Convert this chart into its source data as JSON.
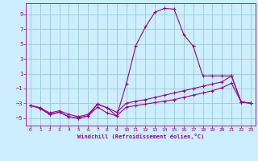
{
  "x": [
    0,
    1,
    2,
    3,
    4,
    5,
    6,
    7,
    8,
    9,
    10,
    11,
    12,
    13,
    14,
    15,
    16,
    17,
    18,
    19,
    20,
    21,
    22,
    23
  ],
  "y_main": [
    -3.3,
    -3.7,
    -4.5,
    -4.2,
    -4.8,
    -5.0,
    -4.7,
    -3.1,
    -3.6,
    -4.7,
    -0.4,
    4.8,
    7.3,
    9.3,
    9.8,
    9.7,
    6.3,
    4.7,
    0.7,
    0.7,
    0.7,
    0.7,
    -2.8,
    -3.0
  ],
  "y_upper_flat": [
    -3.3,
    -3.6,
    -4.3,
    -4.0,
    -4.5,
    -4.8,
    -4.5,
    -3.1,
    -3.6,
    -4.2,
    -3.0,
    -2.7,
    -2.5,
    -2.2,
    -1.9,
    -1.6,
    -1.3,
    -1.0,
    -0.7,
    -0.4,
    -0.1,
    0.7,
    -2.8,
    -3.0
  ],
  "y_lower_flat": [
    -3.3,
    -3.6,
    -4.5,
    -4.2,
    -4.8,
    -5.0,
    -4.7,
    -3.5,
    -4.3,
    -4.7,
    -3.5,
    -3.3,
    -3.1,
    -2.9,
    -2.7,
    -2.5,
    -2.2,
    -1.9,
    -1.6,
    -1.3,
    -0.9,
    -0.3,
    -2.8,
    -3.0
  ],
  "bg_color": "#cceeff",
  "line_color": "#990099",
  "grid_color": "#99cccc",
  "xlabel": "Windchill (Refroidissement éolien,°C)",
  "tick_color": "#990099",
  "xlim": [
    -0.5,
    23.5
  ],
  "ylim": [
    -6,
    10.5
  ],
  "yticks": [
    -5,
    -3,
    -1,
    1,
    3,
    5,
    7,
    9
  ],
  "xticks": [
    0,
    1,
    2,
    3,
    4,
    5,
    6,
    7,
    8,
    9,
    10,
    11,
    12,
    13,
    14,
    15,
    16,
    17,
    18,
    19,
    20,
    21,
    22,
    23
  ]
}
